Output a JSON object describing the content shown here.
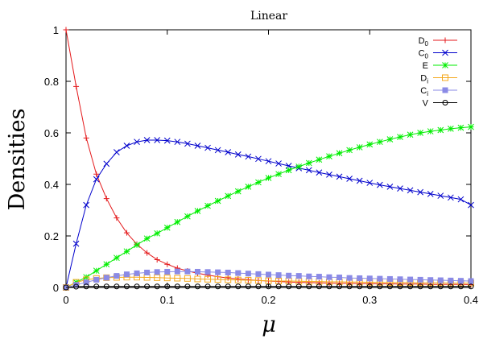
{
  "chart_data": {
    "type": "line",
    "title": "Linear",
    "xlabel": "μ",
    "ylabel": "Densities",
    "xlim": [
      0,
      0.4
    ],
    "ylim": [
      0,
      1
    ],
    "xticks": [
      "0",
      "0.1",
      "0.2",
      "0.3",
      "0.4"
    ],
    "yticks": [
      "0",
      "0.2",
      "0.4",
      "0.6",
      "0.8",
      "1"
    ],
    "grid": false,
    "legend": "top-right",
    "x": [
      0,
      0.01,
      0.02,
      0.03,
      0.04,
      0.05,
      0.06,
      0.07,
      0.08,
      0.09,
      0.1,
      0.11,
      0.12,
      0.13,
      0.14,
      0.15,
      0.16,
      0.17,
      0.18,
      0.19,
      0.2,
      0.21,
      0.22,
      0.23,
      0.24,
      0.25,
      0.26,
      0.27,
      0.28,
      0.29,
      0.3,
      0.31,
      0.32,
      0.33,
      0.34,
      0.35,
      0.36,
      0.37,
      0.38,
      0.39,
      0.4
    ],
    "series": [
      {
        "name": "D",
        "sub": "0",
        "color": "#e41a1c",
        "marker": "plus",
        "values": [
          1.0,
          0.78,
          0.58,
          0.44,
          0.345,
          0.27,
          0.212,
          0.168,
          0.134,
          0.108,
          0.09,
          0.075,
          0.064,
          0.055,
          0.048,
          0.042,
          0.037,
          0.033,
          0.03,
          0.027,
          0.025,
          0.023,
          0.021,
          0.02,
          0.019,
          0.018,
          0.017,
          0.016,
          0.016,
          0.015,
          0.015,
          0.014,
          0.014,
          0.013,
          0.013,
          0.013,
          0.012,
          0.012,
          0.012,
          0.012,
          0.011
        ]
      },
      {
        "name": "C",
        "sub": "0",
        "color": "#0000cc",
        "marker": "cross",
        "values": [
          0.0,
          0.17,
          0.32,
          0.42,
          0.48,
          0.525,
          0.55,
          0.565,
          0.572,
          0.572,
          0.57,
          0.565,
          0.558,
          0.55,
          0.542,
          0.533,
          0.525,
          0.516,
          0.508,
          0.499,
          0.49,
          0.481,
          0.472,
          0.463,
          0.455,
          0.446,
          0.438,
          0.43,
          0.422,
          0.414,
          0.406,
          0.398,
          0.391,
          0.384,
          0.377,
          0.37,
          0.363,
          0.356,
          0.349,
          0.342,
          0.32
        ]
      },
      {
        "name": "E",
        "sub": "",
        "color": "#00ee00",
        "marker": "star",
        "values": [
          0.0,
          0.02,
          0.04,
          0.065,
          0.09,
          0.115,
          0.14,
          0.165,
          0.19,
          0.21,
          0.232,
          0.254,
          0.276,
          0.297,
          0.317,
          0.336,
          0.355,
          0.373,
          0.391,
          0.408,
          0.425,
          0.44,
          0.455,
          0.469,
          0.483,
          0.496,
          0.509,
          0.521,
          0.533,
          0.544,
          0.555,
          0.565,
          0.575,
          0.584,
          0.593,
          0.6,
          0.606,
          0.611,
          0.616,
          0.62,
          0.623
        ]
      },
      {
        "name": "D",
        "sub": "i",
        "color": "#f4a81d",
        "marker": "square-open",
        "values": [
          0.0,
          0.02,
          0.03,
          0.035,
          0.038,
          0.039,
          0.04,
          0.04,
          0.039,
          0.038,
          0.037,
          0.036,
          0.035,
          0.033,
          0.032,
          0.031,
          0.03,
          0.029,
          0.028,
          0.027,
          0.026,
          0.025,
          0.025,
          0.024,
          0.023,
          0.023,
          0.022,
          0.022,
          0.021,
          0.021,
          0.02,
          0.02,
          0.019,
          0.019,
          0.019,
          0.018,
          0.018,
          0.018,
          0.017,
          0.017,
          0.017
        ]
      },
      {
        "name": "C",
        "sub": "i",
        "color": "#8a8ae6",
        "marker": "square-filled",
        "values": [
          0.0,
          0.01,
          0.02,
          0.03,
          0.038,
          0.045,
          0.051,
          0.055,
          0.058,
          0.06,
          0.061,
          0.062,
          0.062,
          0.061,
          0.06,
          0.059,
          0.058,
          0.056,
          0.054,
          0.052,
          0.05,
          0.048,
          0.046,
          0.045,
          0.043,
          0.042,
          0.04,
          0.039,
          0.037,
          0.036,
          0.035,
          0.034,
          0.033,
          0.032,
          0.031,
          0.03,
          0.029,
          0.028,
          0.027,
          0.026,
          0.025
        ]
      },
      {
        "name": "V",
        "sub": "",
        "color": "#000000",
        "marker": "circle-open",
        "values": [
          0.0,
          0.003,
          0.004,
          0.004,
          0.004,
          0.004,
          0.004,
          0.004,
          0.004,
          0.004,
          0.004,
          0.004,
          0.004,
          0.004,
          0.004,
          0.004,
          0.004,
          0.004,
          0.004,
          0.004,
          0.004,
          0.004,
          0.004,
          0.004,
          0.004,
          0.004,
          0.004,
          0.004,
          0.004,
          0.004,
          0.004,
          0.004,
          0.004,
          0.004,
          0.004,
          0.004,
          0.004,
          0.004,
          0.004,
          0.004,
          0.004
        ]
      }
    ]
  }
}
